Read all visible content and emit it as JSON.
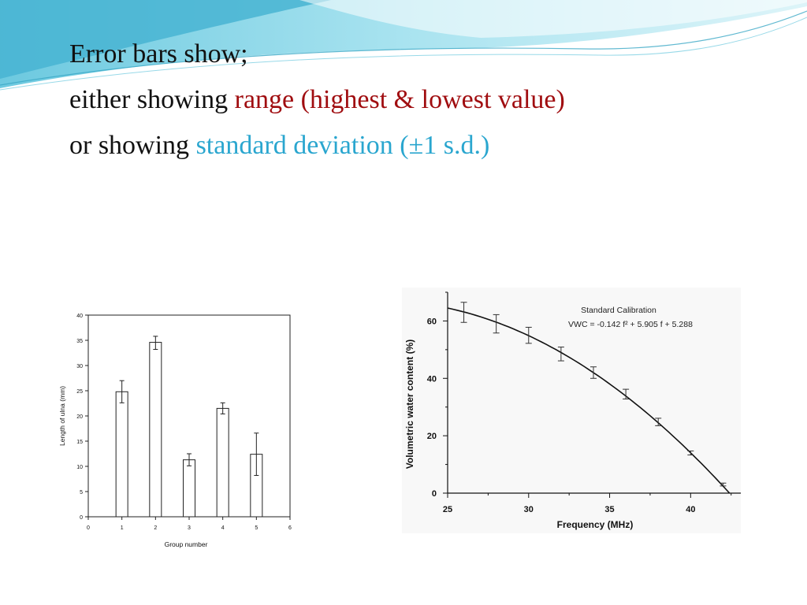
{
  "slide": {
    "line1": "Error bars show;",
    "line2_prefix": "either showing ",
    "line2_highlight": "range (highest & lowest value)",
    "line3_prefix": "or showing ",
    "line3_highlight": "standard deviation (±1 s.d.)",
    "colors": {
      "range": "#a00d10",
      "sd": "#2aa6cf",
      "header": "#7fd3e6"
    }
  },
  "chart_data": [
    {
      "type": "bar",
      "xlabel": "Group number",
      "ylabel": "Length of ulna (mm)",
      "xlim": [
        0,
        6
      ],
      "ylim": [
        0,
        40
      ],
      "xticks": [
        0,
        1,
        2,
        3,
        4,
        5,
        6
      ],
      "yticks": [
        0,
        5,
        10,
        15,
        20,
        25,
        30,
        35,
        40
      ],
      "categories": [
        1,
        2,
        3,
        4,
        5
      ],
      "values": [
        24.8,
        34.6,
        11.3,
        21.5,
        12.4
      ],
      "error_low": [
        22.6,
        33.2,
        10.1,
        20.4,
        8.2
      ],
      "error_high": [
        27.0,
        35.8,
        12.5,
        22.6,
        16.6
      ]
    },
    {
      "type": "line",
      "title": "Standard Calibration",
      "equation": "VWC = -0.142 f² + 5.905 f + 5.288",
      "xlabel": "Frequency (MHz)",
      "ylabel": "Volumetric water content (%)",
      "xlim": [
        25,
        43
      ],
      "ylim": [
        0,
        70
      ],
      "xticks": [
        25,
        30,
        35,
        40
      ],
      "yticks": [
        0,
        20,
        40,
        60
      ],
      "points": {
        "x": [
          26,
          28,
          30,
          32,
          34,
          36,
          38,
          40,
          42
        ],
        "y": [
          63,
          59,
          55,
          48.5,
          42,
          34.5,
          24.8,
          14,
          3
        ],
        "err": [
          3.5,
          3.2,
          2.8,
          2.4,
          2.0,
          1.7,
          1.3,
          0.7,
          0.5
        ]
      },
      "curve": {
        "x_start": 25,
        "x_end": 42.4,
        "y_start": 64.5,
        "y_end": 0
      }
    }
  ]
}
